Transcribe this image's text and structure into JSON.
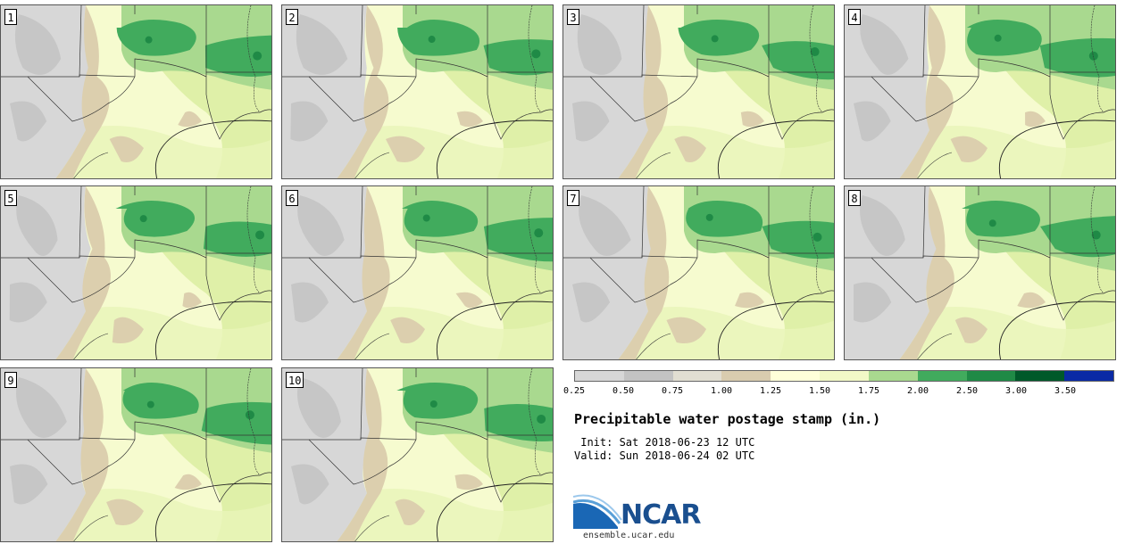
{
  "panels": [
    {
      "label": "1"
    },
    {
      "label": "2"
    },
    {
      "label": "3"
    },
    {
      "label": "4"
    },
    {
      "label": "5"
    },
    {
      "label": "6"
    },
    {
      "label": "7"
    },
    {
      "label": "8"
    },
    {
      "label": "9"
    },
    {
      "label": "10"
    }
  ],
  "legend": {
    "ticks": [
      "0.25",
      "0.50",
      "0.75",
      "1.00",
      "1.25",
      "1.50",
      "1.75",
      "2.00",
      "2.50",
      "3.00",
      "3.50"
    ],
    "colors": [
      "#d7d7d7",
      "#c3c3c3",
      "#e1ded2",
      "#d9ccaf",
      "#ffffd9",
      "#f2f9c7",
      "#a9d98f",
      "#41ab5d",
      "#1f8a46",
      "#00592a",
      "#0a2aa5"
    ]
  },
  "info": {
    "title": "Precipitable water postage stamp (in.)",
    "init": " Init: Sat 2018-06-23 12 UTC",
    "valid": "Valid: Sun 2018-06-24 02 UTC"
  },
  "logo": {
    "name": "NCAR",
    "url": "ensemble.ucar.edu"
  }
}
